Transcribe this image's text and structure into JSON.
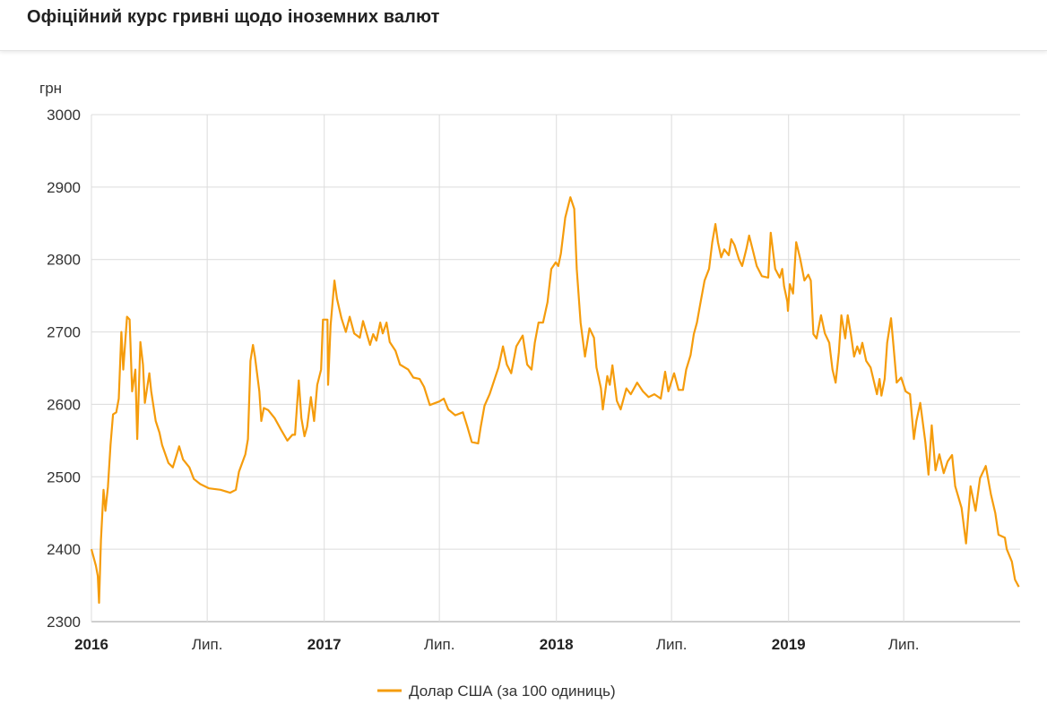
{
  "header": {
    "title": "Офіційний курс гривні щодо іноземних валют"
  },
  "chart_data": {
    "type": "line",
    "title": "",
    "ylabel": "грн",
    "xlabel": "",
    "ylim": [
      2300,
      3000
    ],
    "xlim": [
      "2016-01-01",
      "2019-12-31"
    ],
    "yticks": [
      "3000",
      "2900",
      "2800",
      "2700",
      "2600",
      "2500",
      "2400",
      "2300"
    ],
    "xticks": [
      {
        "date": "2016-01-01",
        "label": "2016",
        "bold": true
      },
      {
        "date": "2016-07-01",
        "label": "Лип.",
        "bold": false
      },
      {
        "date": "2017-01-01",
        "label": "2017",
        "bold": true
      },
      {
        "date": "2017-07-01",
        "label": "Лип.",
        "bold": false
      },
      {
        "date": "2018-01-01",
        "label": "2018",
        "bold": true
      },
      {
        "date": "2018-07-01",
        "label": "Лип.",
        "bold": false
      },
      {
        "date": "2019-01-01",
        "label": "2019",
        "bold": true
      },
      {
        "date": "2019-07-01",
        "label": "Лип.",
        "bold": false
      }
    ],
    "grid": true,
    "legend_position": "bottom",
    "series": [
      {
        "name": "Долар США (за 100 одиниць)",
        "color": "#f59c0c",
        "points": [
          [
            "2016-01-01",
            2400
          ],
          [
            "2016-01-08",
            2377
          ],
          [
            "2016-01-11",
            2363
          ],
          [
            "2016-01-13",
            2326
          ],
          [
            "2016-01-16",
            2412
          ],
          [
            "2016-01-20",
            2482
          ],
          [
            "2016-01-23",
            2453
          ],
          [
            "2016-01-27",
            2486
          ],
          [
            "2016-01-31",
            2544
          ],
          [
            "2016-02-04",
            2586
          ],
          [
            "2016-02-09",
            2589
          ],
          [
            "2016-02-13",
            2608
          ],
          [
            "2016-02-17",
            2700
          ],
          [
            "2016-02-20",
            2648
          ],
          [
            "2016-02-26",
            2721
          ],
          [
            "2016-03-01",
            2717
          ],
          [
            "2016-03-05",
            2618
          ],
          [
            "2016-03-10",
            2648
          ],
          [
            "2016-03-13",
            2552
          ],
          [
            "2016-03-18",
            2686
          ],
          [
            "2016-03-22",
            2655
          ],
          [
            "2016-03-25",
            2602
          ],
          [
            "2016-04-01",
            2643
          ],
          [
            "2016-04-04",
            2618
          ],
          [
            "2016-04-11",
            2577
          ],
          [
            "2016-04-17",
            2561
          ],
          [
            "2016-04-21",
            2544
          ],
          [
            "2016-05-01",
            2519
          ],
          [
            "2016-05-08",
            2513
          ],
          [
            "2016-05-18",
            2542
          ],
          [
            "2016-05-24",
            2524
          ],
          [
            "2016-06-03",
            2513
          ],
          [
            "2016-06-10",
            2497
          ],
          [
            "2016-06-20",
            2490
          ],
          [
            "2016-07-04",
            2484
          ],
          [
            "2016-07-22",
            2482
          ],
          [
            "2016-08-06",
            2478
          ],
          [
            "2016-08-15",
            2482
          ],
          [
            "2016-08-20",
            2507
          ],
          [
            "2016-08-30",
            2531
          ],
          [
            "2016-09-03",
            2552
          ],
          [
            "2016-09-07",
            2660
          ],
          [
            "2016-09-11",
            2682
          ],
          [
            "2016-09-14",
            2666
          ],
          [
            "2016-09-21",
            2618
          ],
          [
            "2016-09-24",
            2577
          ],
          [
            "2016-09-28",
            2595
          ],
          [
            "2016-10-05",
            2592
          ],
          [
            "2016-10-15",
            2581
          ],
          [
            "2016-10-25",
            2565
          ],
          [
            "2016-11-04",
            2550
          ],
          [
            "2016-11-12",
            2558
          ],
          [
            "2016-11-16",
            2558
          ],
          [
            "2016-11-22",
            2633
          ],
          [
            "2016-11-26",
            2581
          ],
          [
            "2016-12-01",
            2556
          ],
          [
            "2016-12-05",
            2569
          ],
          [
            "2016-12-11",
            2610
          ],
          [
            "2016-12-16",
            2577
          ],
          [
            "2016-12-21",
            2627
          ],
          [
            "2016-12-27",
            2648
          ],
          [
            "2016-12-30",
            2717
          ],
          [
            "2017-01-06",
            2717
          ],
          [
            "2017-01-07",
            2627
          ],
          [
            "2017-01-11",
            2709
          ],
          [
            "2017-01-17",
            2771
          ],
          [
            "2017-01-21",
            2746
          ],
          [
            "2017-01-28",
            2719
          ],
          [
            "2017-02-04",
            2700
          ],
          [
            "2017-02-10",
            2721
          ],
          [
            "2017-02-17",
            2698
          ],
          [
            "2017-02-26",
            2692
          ],
          [
            "2017-03-03",
            2715
          ],
          [
            "2017-03-14",
            2682
          ],
          [
            "2017-03-19",
            2697
          ],
          [
            "2017-03-24",
            2688
          ],
          [
            "2017-03-30",
            2713
          ],
          [
            "2017-04-03",
            2698
          ],
          [
            "2017-04-09",
            2713
          ],
          [
            "2017-04-14",
            2686
          ],
          [
            "2017-04-23",
            2674
          ],
          [
            "2017-04-30",
            2655
          ],
          [
            "2017-05-13",
            2648
          ],
          [
            "2017-05-21",
            2637
          ],
          [
            "2017-05-31",
            2635
          ],
          [
            "2017-06-07",
            2624
          ],
          [
            "2017-06-16",
            2599
          ],
          [
            "2017-07-01",
            2604
          ],
          [
            "2017-07-08",
            2608
          ],
          [
            "2017-07-15",
            2593
          ],
          [
            "2017-07-26",
            2585
          ],
          [
            "2017-08-07",
            2589
          ],
          [
            "2017-08-14",
            2569
          ],
          [
            "2017-08-21",
            2548
          ],
          [
            "2017-08-31",
            2546
          ],
          [
            "2017-09-04",
            2569
          ],
          [
            "2017-09-10",
            2598
          ],
          [
            "2017-09-18",
            2614
          ],
          [
            "2017-10-02",
            2651
          ],
          [
            "2017-10-09",
            2680
          ],
          [
            "2017-10-15",
            2655
          ],
          [
            "2017-10-22",
            2643
          ],
          [
            "2017-10-30",
            2680
          ],
          [
            "2017-11-09",
            2695
          ],
          [
            "2017-11-16",
            2655
          ],
          [
            "2017-11-23",
            2648
          ],
          [
            "2017-11-28",
            2685
          ],
          [
            "2017-12-04",
            2713
          ],
          [
            "2017-12-11",
            2713
          ],
          [
            "2017-12-18",
            2741
          ],
          [
            "2017-12-24",
            2787
          ],
          [
            "2017-12-31",
            2796
          ],
          [
            "2018-01-04",
            2791
          ],
          [
            "2018-01-08",
            2808
          ],
          [
            "2018-01-15",
            2858
          ],
          [
            "2018-01-23",
            2886
          ],
          [
            "2018-01-29",
            2870
          ],
          [
            "2018-02-02",
            2787
          ],
          [
            "2018-02-08",
            2713
          ],
          [
            "2018-02-15",
            2666
          ],
          [
            "2018-02-22",
            2705
          ],
          [
            "2018-03-01",
            2692
          ],
          [
            "2018-03-05",
            2651
          ],
          [
            "2018-03-12",
            2622
          ],
          [
            "2018-03-15",
            2593
          ],
          [
            "2018-03-22",
            2639
          ],
          [
            "2018-03-26",
            2627
          ],
          [
            "2018-03-30",
            2654
          ],
          [
            "2018-04-06",
            2605
          ],
          [
            "2018-04-12",
            2593
          ],
          [
            "2018-04-21",
            2622
          ],
          [
            "2018-04-28",
            2614
          ],
          [
            "2018-05-08",
            2630
          ],
          [
            "2018-05-17",
            2618
          ],
          [
            "2018-05-26",
            2610
          ],
          [
            "2018-06-04",
            2614
          ],
          [
            "2018-06-14",
            2608
          ],
          [
            "2018-06-21",
            2645
          ],
          [
            "2018-06-26",
            2618
          ],
          [
            "2018-07-05",
            2643
          ],
          [
            "2018-07-12",
            2620
          ],
          [
            "2018-07-19",
            2620
          ],
          [
            "2018-07-24",
            2648
          ],
          [
            "2018-07-31",
            2668
          ],
          [
            "2018-08-05",
            2697
          ],
          [
            "2018-08-10",
            2713
          ],
          [
            "2018-08-15",
            2738
          ],
          [
            "2018-08-22",
            2771
          ],
          [
            "2018-08-29",
            2787
          ],
          [
            "2018-09-03",
            2824
          ],
          [
            "2018-09-08",
            2849
          ],
          [
            "2018-09-12",
            2824
          ],
          [
            "2018-09-17",
            2803
          ],
          [
            "2018-09-22",
            2814
          ],
          [
            "2018-09-29",
            2806
          ],
          [
            "2018-10-03",
            2828
          ],
          [
            "2018-10-08",
            2820
          ],
          [
            "2018-10-15",
            2800
          ],
          [
            "2018-10-20",
            2791
          ],
          [
            "2018-10-27",
            2816
          ],
          [
            "2018-10-31",
            2833
          ],
          [
            "2018-11-06",
            2812
          ],
          [
            "2018-11-12",
            2791
          ],
          [
            "2018-11-20",
            2777
          ],
          [
            "2018-11-30",
            2775
          ],
          [
            "2018-12-04",
            2837
          ],
          [
            "2018-12-11",
            2787
          ],
          [
            "2018-12-18",
            2775
          ],
          [
            "2018-12-22",
            2787
          ],
          [
            "2018-12-25",
            2763
          ],
          [
            "2018-12-30",
            2742
          ],
          [
            "2018-12-31",
            2729
          ],
          [
            "2019-01-03",
            2766
          ],
          [
            "2019-01-08",
            2753
          ],
          [
            "2019-01-13",
            2824
          ],
          [
            "2019-01-19",
            2802
          ],
          [
            "2019-01-26",
            2771
          ],
          [
            "2019-02-01",
            2779
          ],
          [
            "2019-02-05",
            2771
          ],
          [
            "2019-02-09",
            2697
          ],
          [
            "2019-02-14",
            2691
          ],
          [
            "2019-02-21",
            2723
          ],
          [
            "2019-02-27",
            2698
          ],
          [
            "2019-03-06",
            2685
          ],
          [
            "2019-03-11",
            2648
          ],
          [
            "2019-03-16",
            2630
          ],
          [
            "2019-03-21",
            2672
          ],
          [
            "2019-03-25",
            2723
          ],
          [
            "2019-03-31",
            2691
          ],
          [
            "2019-04-04",
            2723
          ],
          [
            "2019-04-09",
            2697
          ],
          [
            "2019-04-14",
            2666
          ],
          [
            "2019-04-19",
            2680
          ],
          [
            "2019-04-23",
            2670
          ],
          [
            "2019-04-27",
            2685
          ],
          [
            "2019-05-03",
            2660
          ],
          [
            "2019-05-10",
            2651
          ],
          [
            "2019-05-20",
            2614
          ],
          [
            "2019-05-24",
            2635
          ],
          [
            "2019-05-27",
            2612
          ],
          [
            "2019-06-01",
            2635
          ],
          [
            "2019-06-05",
            2685
          ],
          [
            "2019-06-11",
            2719
          ],
          [
            "2019-06-15",
            2680
          ],
          [
            "2019-06-20",
            2630
          ],
          [
            "2019-06-27",
            2637
          ],
          [
            "2019-07-04",
            2618
          ],
          [
            "2019-07-11",
            2614
          ],
          [
            "2019-07-17",
            2552
          ],
          [
            "2019-07-21",
            2577
          ],
          [
            "2019-07-27",
            2602
          ],
          [
            "2019-08-04",
            2548
          ],
          [
            "2019-08-09",
            2503
          ],
          [
            "2019-08-14",
            2571
          ],
          [
            "2019-08-20",
            2509
          ],
          [
            "2019-08-26",
            2531
          ],
          [
            "2019-09-02",
            2505
          ],
          [
            "2019-09-08",
            2521
          ],
          [
            "2019-09-15",
            2530
          ],
          [
            "2019-09-20",
            2487
          ],
          [
            "2019-09-30",
            2457
          ],
          [
            "2019-10-07",
            2408
          ],
          [
            "2019-10-14",
            2487
          ],
          [
            "2019-10-22",
            2453
          ],
          [
            "2019-10-29",
            2498
          ],
          [
            "2019-11-07",
            2515
          ],
          [
            "2019-11-15",
            2476
          ],
          [
            "2019-11-22",
            2450
          ],
          [
            "2019-11-27",
            2420
          ],
          [
            "2019-12-07",
            2416
          ],
          [
            "2019-12-10",
            2400
          ],
          [
            "2019-12-18",
            2383
          ],
          [
            "2019-12-23",
            2358
          ],
          [
            "2019-12-29",
            2348
          ]
        ]
      }
    ]
  }
}
